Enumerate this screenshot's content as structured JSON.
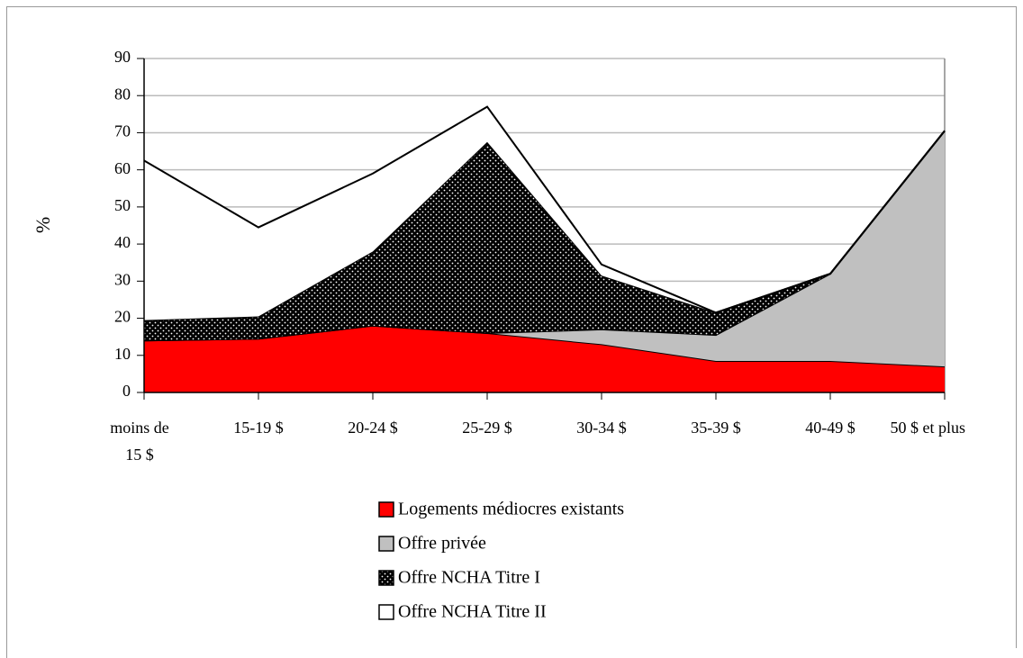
{
  "chart_data": {
    "type": "stacked_area",
    "ylabel": "%",
    "categories": [
      "moins de 15 $",
      "15-19 $",
      "20-24 $",
      "25-29 $",
      "30-34 $",
      "35-39 $",
      "40-49 $",
      "50 $ et plus"
    ],
    "series": [
      {
        "name": "Logements médiocres existants",
        "color": "#ff0000",
        "values": [
          14,
          14.5,
          18,
          16,
          13,
          8.5,
          8.5,
          7
        ]
      },
      {
        "name": "Offre privée",
        "color": "#c0c0c0",
        "values": [
          0,
          0,
          0,
          0,
          4,
          7,
          23.5,
          63.5
        ]
      },
      {
        "name": "Offre NCHA Titre I",
        "color": "#000000",
        "pattern": "dots",
        "values": [
          5.5,
          6,
          20,
          51.5,
          14.5,
          6,
          0,
          0
        ]
      },
      {
        "name": "Offre NCHA Titre II",
        "color": "#ffffff",
        "values": [
          43,
          24,
          21,
          9.5,
          3,
          0,
          0,
          0
        ]
      }
    ],
    "ylim": [
      0,
      90
    ],
    "yticks": [
      0,
      10,
      20,
      30,
      40,
      50,
      60,
      70,
      80,
      90
    ],
    "grid": true
  }
}
